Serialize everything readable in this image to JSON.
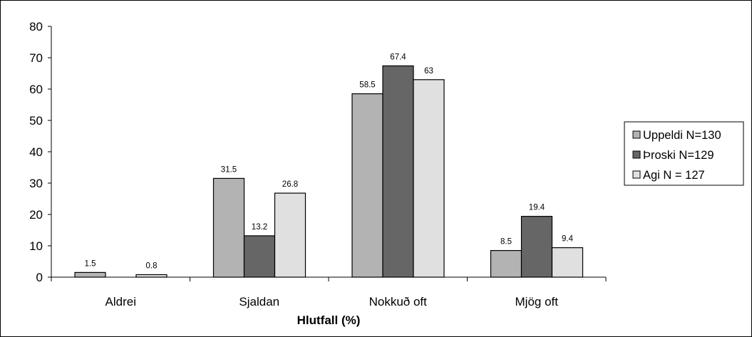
{
  "chart_data": {
    "type": "bar",
    "title": "",
    "xlabel": "Hlutfall (%)",
    "ylabel": "",
    "categories": [
      "Aldrei",
      "Sjaldan",
      "Nokkuð oft",
      "Mjög oft"
    ],
    "series": [
      {
        "name": "Uppeldi N=130",
        "color": "#b3b3b3",
        "values": [
          1.5,
          31.5,
          58.5,
          8.5
        ],
        "labels": [
          "1.5",
          "31.5",
          "58.5",
          "8.5"
        ]
      },
      {
        "name": "Þroski  N=129",
        "color": "#666666",
        "values": [
          null,
          13.2,
          67.4,
          19.4
        ],
        "labels": [
          "",
          "13.2",
          "67.4",
          "19.4"
        ]
      },
      {
        "name": "Agi N = 127",
        "color": "#e0e0e0",
        "values": [
          0.8,
          26.8,
          63,
          9.4
        ],
        "labels": [
          "0.8",
          "26.8",
          "63",
          "9.4"
        ]
      }
    ],
    "ylim": [
      0,
      80
    ],
    "yticks": [
      0,
      10,
      20,
      30,
      40,
      50,
      60,
      70,
      80
    ],
    "grid": false,
    "legend_position": "right"
  }
}
